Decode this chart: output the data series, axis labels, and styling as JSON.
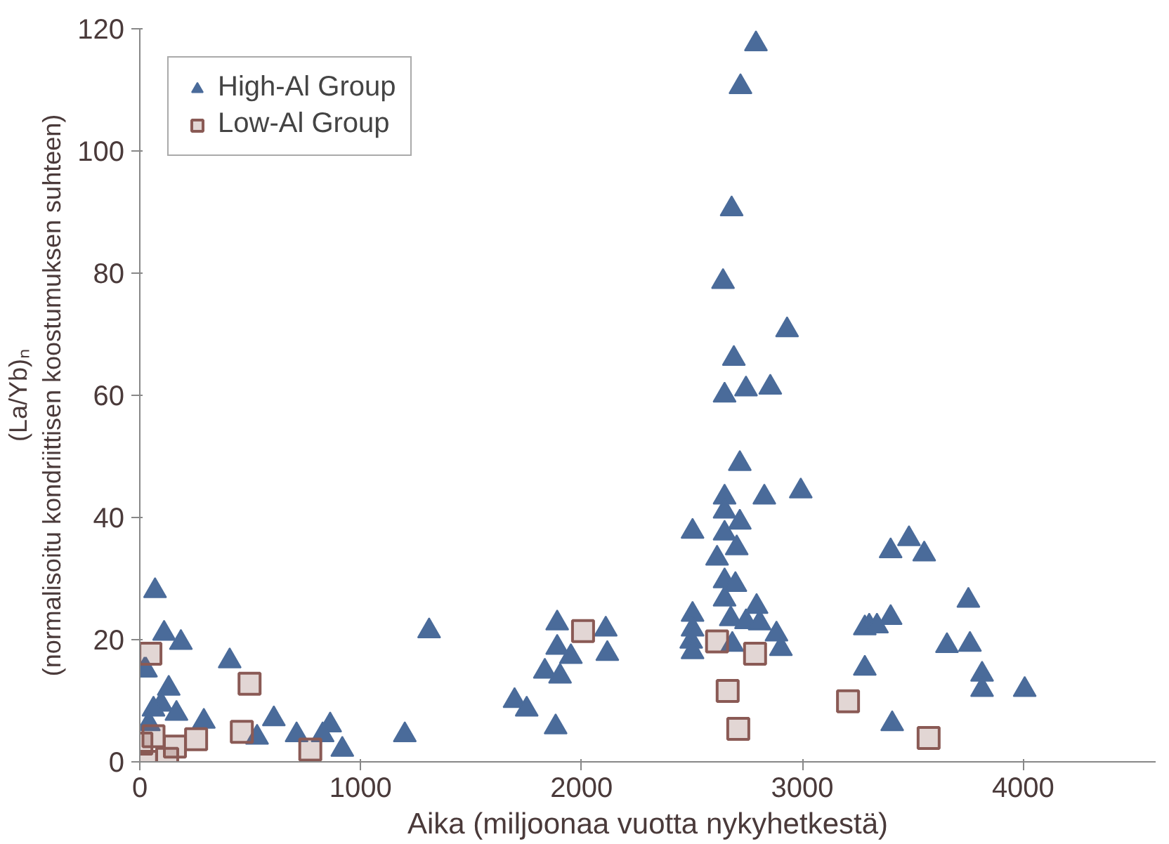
{
  "chart_data": {
    "type": "scatter",
    "xlabel": "Aika (miljoonaa vuotta nykyhetkestä)",
    "ylabel": "(La/Yb)ₙ\n(normalisoitu kondriittisen koostumuksen suhteen)",
    "xlim": [
      0,
      4600
    ],
    "ylim": [
      0,
      120
    ],
    "xticks": [
      0,
      1000,
      2000,
      3000,
      4000
    ],
    "yticks": [
      0,
      20,
      40,
      60,
      80,
      100,
      120
    ],
    "grid": false,
    "legend": "top left",
    "series": [
      {
        "name": "High-Al Group",
        "color": "#4a6b9a",
        "marker": "triangle",
        "x": [
          28,
          69,
          110,
          186,
          21,
          131,
          97,
          166,
          62,
          41,
          407,
          290,
          607,
          531,
          710,
          862,
          828,
          917,
          1200,
          1310,
          1697,
          1752,
          1883,
          1834,
          1903,
          1890,
          1952,
          1890,
          2110,
          2117,
          2790,
          2720,
          2680,
          2641,
          2931,
          2690,
          2648,
          2745,
          2855,
          2717,
          2648,
          2828,
          2993,
          2503,
          2648,
          2717,
          2648,
          2703,
          2614,
          2648,
          2697,
          2648,
          2793,
          2503,
          2676,
          2745,
          2807,
          2503,
          2497,
          2503,
          2883,
          2903,
          3283,
          2683,
          3483,
          3400,
          3552,
          3752,
          3400,
          3303,
          3338,
          3655,
          3759,
          3283,
          3814,
          3814,
          4007,
          3407
        ],
        "values": [
          15,
          28,
          21,
          19.5,
          15,
          12,
          9.4,
          7.9,
          8.6,
          6.2,
          16.5,
          6.6,
          7,
          4,
          4.4,
          6,
          4.4,
          2,
          4.4,
          21.4,
          10,
          8.6,
          5.7,
          14.8,
          14,
          22.7,
          17.2,
          18.7,
          21.7,
          17.7,
          117.5,
          110.5,
          90.5,
          78.6,
          70.7,
          66,
          60,
          61,
          61.3,
          48.8,
          43.3,
          43.3,
          44.3,
          37.7,
          41,
          39.2,
          37.4,
          35,
          33.3,
          29.6,
          29,
          26.6,
          25.4,
          24.1,
          23.4,
          22.9,
          22.7,
          21.7,
          19.7,
          18,
          20.9,
          18.5,
          21.9,
          19.2,
          36.5,
          34.5,
          34,
          26.4,
          23.6,
          22.2,
          22.2,
          19,
          19.2,
          15.3,
          14.3,
          11.8,
          11.8,
          6.2
        ]
      },
      {
        "name": "Low-Al Group",
        "color": "#8a5a55",
        "marker": "square",
        "x": [
          48,
          497,
          462,
          2007,
          772,
          255,
          159,
          62,
          28,
          124,
          7,
          2614,
          2786,
          2662,
          2710,
          3207,
          3572
        ],
        "values": [
          17.7,
          12.8,
          4.9,
          21.4,
          2,
          3.7,
          2.5,
          4.2,
          0,
          0.5,
          3,
          19.7,
          17.7,
          11.6,
          5.4,
          9.9,
          3.9
        ]
      }
    ]
  }
}
